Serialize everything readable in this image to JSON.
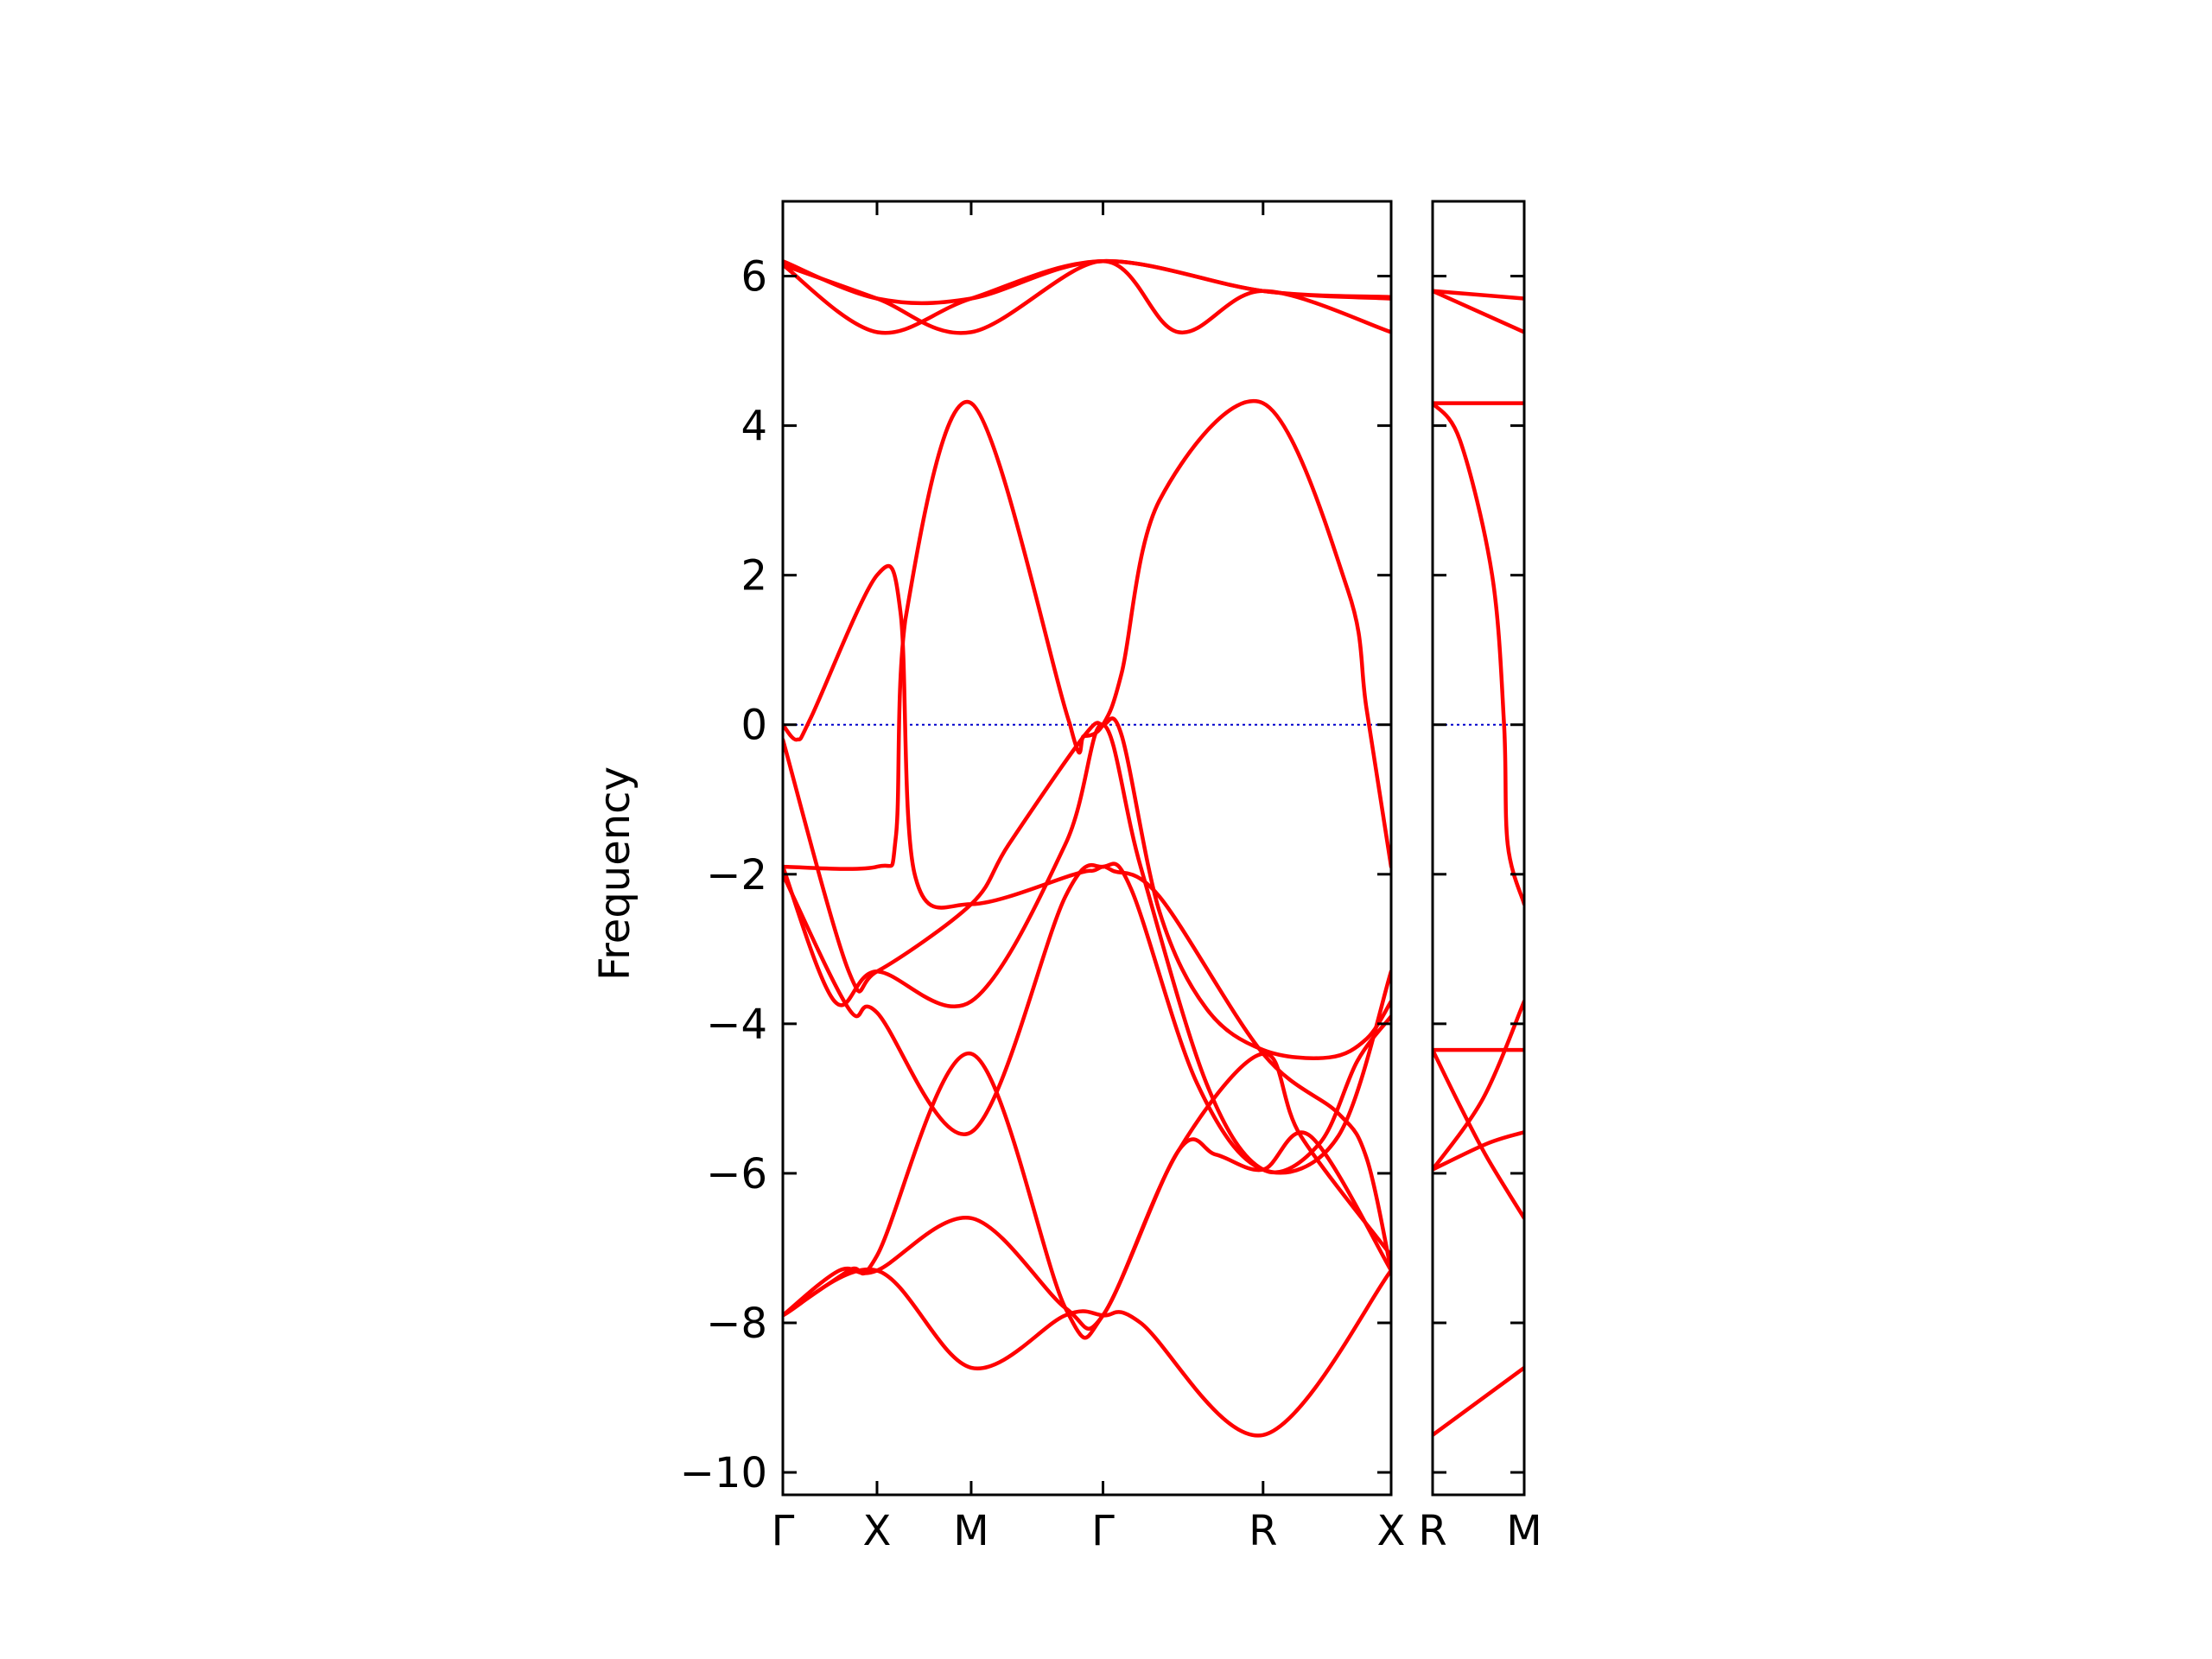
{
  "chart_data": {
    "type": "line",
    "ylabel": "Frequency",
    "ylim": [
      -10.3,
      7.0
    ],
    "yticks": [
      {
        "value": 6,
        "label": "6"
      },
      {
        "value": 4,
        "label": "4"
      },
      {
        "value": 2,
        "label": "2"
      },
      {
        "value": 0,
        "label": "0"
      },
      {
        "value": -2,
        "label": "−2"
      },
      {
        "value": -4,
        "label": "−4"
      },
      {
        "value": -6,
        "label": "−6"
      },
      {
        "value": -8,
        "label": "−8"
      },
      {
        "value": -10,
        "label": "−10"
      }
    ],
    "line_color": "#ff0000",
    "zero_line_color": "#0000cc",
    "panels": [
      {
        "xlim": [
          0,
          6.46
        ],
        "points": [
          {
            "x": 0,
            "label": "Γ"
          },
          {
            "x": 1.0,
            "label": "X"
          },
          {
            "x": 2.0,
            "label": "M"
          },
          {
            "x": 3.4,
            "label": "Γ"
          },
          {
            "x": 5.1,
            "label": "R"
          },
          {
            "x": 6.46,
            "label": "X"
          }
        ],
        "series": [
          {
            "x": [
              0,
              1.0,
              2.0,
              3.4,
              5.1,
              6.46
            ],
            "y": [
              6.2,
              5.7,
              5.7,
              6.2,
              5.8,
              5.7
            ]
          },
          {
            "x": [
              0,
              1.0,
              2.0,
              3.4,
              5.1,
              6.46
            ],
            "y": [
              6.15,
              5.25,
              5.7,
              6.2,
              5.8,
              5.72
            ]
          },
          {
            "x": [
              0,
              1.0,
              2.0,
              3.4,
              4.2,
              5.1,
              6.46
            ],
            "y": [
              6.15,
              5.7,
              5.25,
              6.2,
              5.25,
              5.8,
              5.25
            ]
          },
          {
            "x": [
              0,
              0.15,
              0.3,
              1.0,
              1.25,
              1.4,
              2.0,
              3.1,
              3.3,
              3.4,
              3.5,
              4.0,
              5.1,
              5.9,
              6.2,
              6.46
            ],
            "y": [
              0.0,
              -0.2,
              0.1,
              2.0,
              1.5,
              -2.0,
              -2.4,
              -2.0,
              -1.95,
              -1.9,
              -1.95,
              -2.3,
              -4.4,
              -5.2,
              -5.8,
              -7.3
            ]
          },
          {
            "x": [
              0,
              1.0,
              1.2,
              1.3,
              2.0,
              3.05,
              3.2,
              3.4,
              3.6,
              4.0,
              5.1,
              6.0,
              6.2,
              6.46
            ],
            "y": [
              -1.9,
              -1.9,
              -1.5,
              1.4,
              4.3,
              0.0,
              -0.15,
              0.0,
              0.7,
              3.0,
              4.3,
              1.8,
              0.2,
              -1.9
            ]
          },
          {
            "x": [
              0,
              0.7,
              1.0,
              2.0,
              2.4,
              3.2,
              3.4,
              3.6,
              4.0,
              4.5,
              5.1,
              5.8,
              6.2,
              6.46
            ],
            "y": [
              -0.2,
              -3.3,
              -3.3,
              -2.4,
              -1.6,
              -0.15,
              0.0,
              -0.15,
              -2.5,
              -3.8,
              -4.35,
              -4.45,
              -4.2,
              -3.7
            ]
          },
          {
            "x": [
              0,
              0.55,
              1.0,
              2.0,
              3.0,
              3.4,
              3.8,
              4.5,
              5.1,
              5.7,
              6.1,
              6.46
            ],
            "y": [
              -1.9,
              -3.7,
              -3.3,
              -3.7,
              -1.6,
              0.0,
              -1.9,
              -4.8,
              -5.95,
              -5.6,
              -4.5,
              -3.9
            ]
          },
          {
            "x": [
              0,
              0.7,
              1.0,
              2.0,
              3.0,
              3.4,
              3.7,
              4.4,
              5.1,
              5.9,
              6.46
            ],
            "y": [
              -2.0,
              -3.8,
              -3.85,
              -5.45,
              -2.3,
              -1.9,
              -2.2,
              -4.8,
              -5.95,
              -5.5,
              -3.3
            ]
          },
          {
            "x": [
              0,
              0.7,
              1.0,
              2.0,
              3.0,
              3.4,
              4.2,
              4.6,
              5.1,
              5.6,
              6.46
            ],
            "y": [
              -7.9,
              -7.3,
              -7.1,
              -4.4,
              -7.8,
              -7.9,
              -5.7,
              -5.75,
              -5.95,
              -5.5,
              -7.3
            ]
          },
          {
            "x": [
              0,
              0.6,
              1.0,
              2.0,
              3.0,
              3.4,
              4.2,
              5.1,
              5.5,
              6.46
            ],
            "y": [
              -7.9,
              -7.3,
              -7.3,
              -6.6,
              -7.8,
              -7.9,
              -5.7,
              -4.4,
              -5.5,
              -7.1
            ]
          },
          {
            "x": [
              0,
              1.0,
              2.0,
              3.0,
              3.4,
              3.8,
              5.1,
              6.46
            ],
            "y": [
              -7.9,
              -7.3,
              -8.6,
              -7.9,
              -7.9,
              -8.0,
              -9.5,
              -7.3
            ]
          }
        ]
      },
      {
        "xlim": [
          0,
          1.0
        ],
        "points": [
          {
            "x": 0,
            "label": "R"
          },
          {
            "x": 1.0,
            "label": "M"
          }
        ],
        "series": [
          {
            "x": [
              0,
              1.0
            ],
            "y": [
              5.8,
              5.7
            ]
          },
          {
            "x": [
              0,
              1.0
            ],
            "y": [
              5.8,
              5.25
            ]
          },
          {
            "x": [
              0,
              1.0
            ],
            "y": [
              4.3,
              4.3
            ]
          },
          {
            "x": [
              0,
              0.3,
              0.65,
              0.78,
              0.82,
              1.0
            ],
            "y": [
              4.3,
              3.8,
              2.0,
              0.0,
              -1.6,
              -2.4
            ]
          },
          {
            "x": [
              0,
              1.0
            ],
            "y": [
              -4.35,
              -4.35
            ]
          },
          {
            "x": [
              0,
              0.55,
              1.0
            ],
            "y": [
              -5.95,
              -5.0,
              -3.7
            ]
          },
          {
            "x": [
              0,
              0.6,
              1.0
            ],
            "y": [
              -5.95,
              -5.6,
              -5.45
            ]
          },
          {
            "x": [
              0,
              0.3,
              0.6,
              1.0
            ],
            "y": [
              -4.35,
              -5.1,
              -5.8,
              -6.6
            ]
          },
          {
            "x": [
              0,
              1.0
            ],
            "y": [
              -9.5,
              -8.6
            ]
          }
        ]
      }
    ]
  }
}
